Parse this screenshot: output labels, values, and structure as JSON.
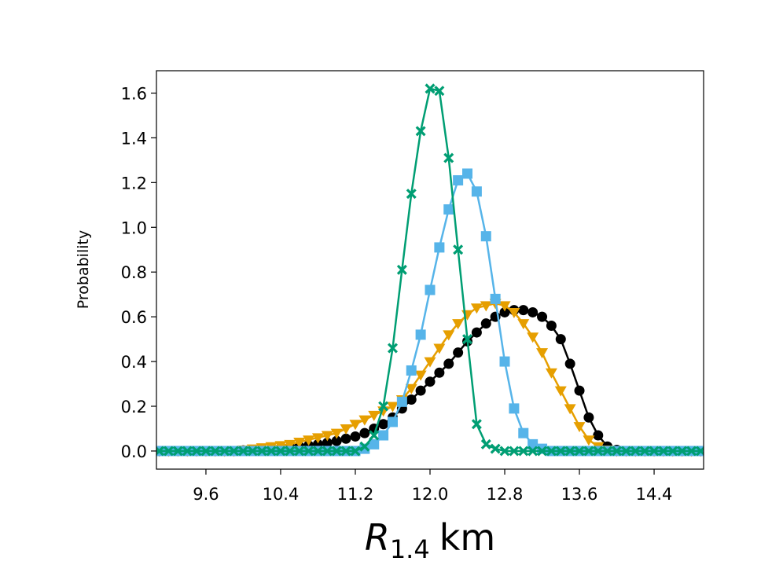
{
  "chart_data": {
    "type": "line",
    "ylabel": "Probability",
    "xlabel": {
      "main": "R",
      "subscript": "1.4",
      "unit": "km"
    },
    "x": [
      9.1,
      9.2,
      9.3,
      9.4,
      9.5,
      9.6,
      9.7,
      9.8,
      9.9,
      10.0,
      10.1,
      10.2,
      10.3,
      10.4,
      10.5,
      10.6,
      10.7,
      10.8,
      10.9,
      11.0,
      11.1,
      11.2,
      11.3,
      11.4,
      11.5,
      11.6,
      11.7,
      11.8,
      11.9,
      12.0,
      12.1,
      12.2,
      12.3,
      12.4,
      12.5,
      12.6,
      12.7,
      12.8,
      12.9,
      13.0,
      13.1,
      13.2,
      13.3,
      13.4,
      13.5,
      13.6,
      13.7,
      13.8,
      13.9,
      14.0,
      14.1,
      14.2,
      14.3,
      14.4,
      14.5,
      14.6,
      14.7,
      14.8,
      14.9
    ],
    "series": [
      {
        "color": "#000000",
        "marker": "circle",
        "values": [
          0,
          0,
          0,
          0,
          0,
          0,
          0,
          0,
          0,
          0.003,
          0.005,
          0.008,
          0.01,
          0.013,
          0.017,
          0.02,
          0.025,
          0.03,
          0.037,
          0.045,
          0.055,
          0.065,
          0.08,
          0.1,
          0.12,
          0.15,
          0.19,
          0.23,
          0.27,
          0.31,
          0.35,
          0.39,
          0.44,
          0.49,
          0.53,
          0.57,
          0.6,
          0.62,
          0.63,
          0.63,
          0.62,
          0.6,
          0.56,
          0.5,
          0.39,
          0.27,
          0.15,
          0.07,
          0.02,
          0.005,
          0,
          0,
          0,
          0,
          0,
          0,
          0,
          0,
          0
        ]
      },
      {
        "color": "#E69F00",
        "marker": "triangle-down",
        "values": [
          0,
          0,
          0,
          0,
          0,
          0,
          0,
          0,
          0,
          0.005,
          0.01,
          0.015,
          0.02,
          0.025,
          0.03,
          0.04,
          0.05,
          0.06,
          0.07,
          0.08,
          0.1,
          0.12,
          0.14,
          0.16,
          0.18,
          0.2,
          0.23,
          0.28,
          0.34,
          0.4,
          0.46,
          0.52,
          0.57,
          0.61,
          0.64,
          0.65,
          0.66,
          0.65,
          0.62,
          0.57,
          0.51,
          0.44,
          0.35,
          0.27,
          0.19,
          0.11,
          0.05,
          0.02,
          0.005,
          0,
          0,
          0,
          0,
          0,
          0,
          0,
          0,
          0,
          0
        ]
      },
      {
        "color": "#56B4E9",
        "marker": "square",
        "values": [
          0,
          0,
          0,
          0,
          0,
          0,
          0,
          0,
          0,
          0,
          0,
          0,
          0,
          0,
          0,
          0,
          0,
          0,
          0,
          0,
          0,
          0,
          0.01,
          0.03,
          0.07,
          0.13,
          0.22,
          0.36,
          0.52,
          0.72,
          0.91,
          1.08,
          1.21,
          1.24,
          1.16,
          0.96,
          0.68,
          0.4,
          0.19,
          0.08,
          0.03,
          0.01,
          0,
          0,
          0,
          0,
          0,
          0,
          0,
          0,
          0,
          0,
          0,
          0,
          0,
          0,
          0,
          0,
          0
        ]
      },
      {
        "color": "#009E73",
        "marker": "x",
        "values": [
          0,
          0,
          0,
          0,
          0,
          0,
          0,
          0,
          0,
          0,
          0,
          0,
          0,
          0,
          0,
          0,
          0,
          0,
          0,
          0,
          0,
          0,
          0.02,
          0.07,
          0.2,
          0.46,
          0.81,
          1.15,
          1.43,
          1.62,
          1.61,
          1.31,
          0.9,
          0.5,
          0.12,
          0.03,
          0.01,
          0,
          0,
          0,
          0,
          0,
          0,
          0,
          0,
          0,
          0,
          0,
          0,
          0,
          0,
          0,
          0,
          0,
          0,
          0,
          0,
          0,
          0
        ]
      }
    ],
    "xlim": [
      9.07,
      14.93
    ],
    "ylim": [
      -0.081,
      1.7
    ],
    "xticks": [
      9.6,
      10.4,
      11.2,
      {
        "value": 12,
        "label": "12.0"
      },
      12.8,
      13.6,
      14.4
    ],
    "yticks": [
      {
        "value": 0,
        "label": "0.0"
      },
      0.2,
      0.4,
      0.6,
      0.8,
      {
        "value": 1,
        "label": "1.0"
      },
      1.2,
      1.4,
      1.6
    ]
  }
}
